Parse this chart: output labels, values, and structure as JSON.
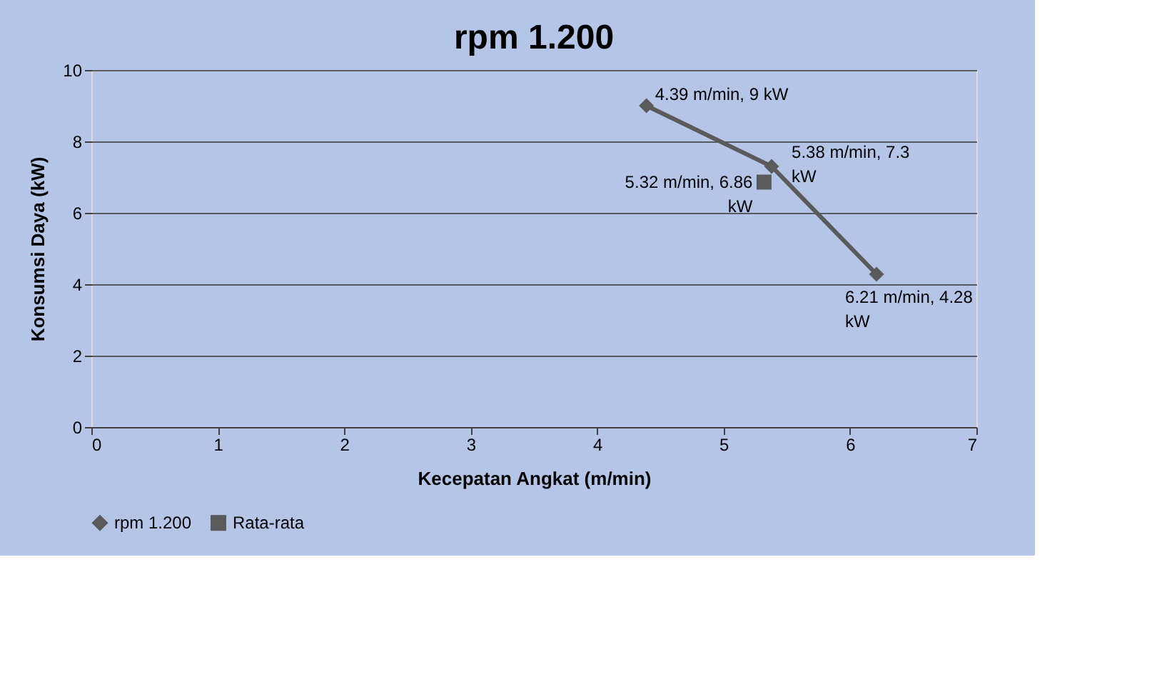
{
  "chart_data": {
    "type": "line",
    "title": "rpm 1.200",
    "xlabel": "Kecepatan Angkat (m/min)",
    "ylabel": "Konsumsi Daya (kW)",
    "xlim": [
      0,
      7
    ],
    "xticks": [
      0,
      1,
      2,
      3,
      4,
      5,
      6,
      7
    ],
    "ylim": [
      0,
      10
    ],
    "yticks": [
      0,
      2,
      4,
      6,
      8,
      10
    ],
    "grid": "y",
    "legend": "bottom",
    "series": [
      {
        "name": "rpm 1.200",
        "type": "line",
        "marker": "diamond",
        "color": "#5a5a5a",
        "x": [
          4.39,
          5.38,
          6.21
        ],
        "values": [
          9,
          7.3,
          4.28
        ]
      },
      {
        "name": "Rata-rata",
        "type": "scatter",
        "marker": "square",
        "color": "#5a5a5a",
        "x": [
          5.32
        ],
        "values": [
          6.86
        ]
      }
    ],
    "annotations": [
      {
        "text": "4.39 m/min, 9 kW",
        "x": 4.39,
        "y": 9
      },
      {
        "text": "5.38 m/min, 7.3 kW",
        "x": 5.38,
        "y": 7.3
      },
      {
        "text": "5.32 m/min, 6.86 kW",
        "x": 5.32,
        "y": 6.86
      },
      {
        "text": "6.21 m/min, 4.28 kW",
        "x": 6.21,
        "y": 4.28
      }
    ]
  }
}
